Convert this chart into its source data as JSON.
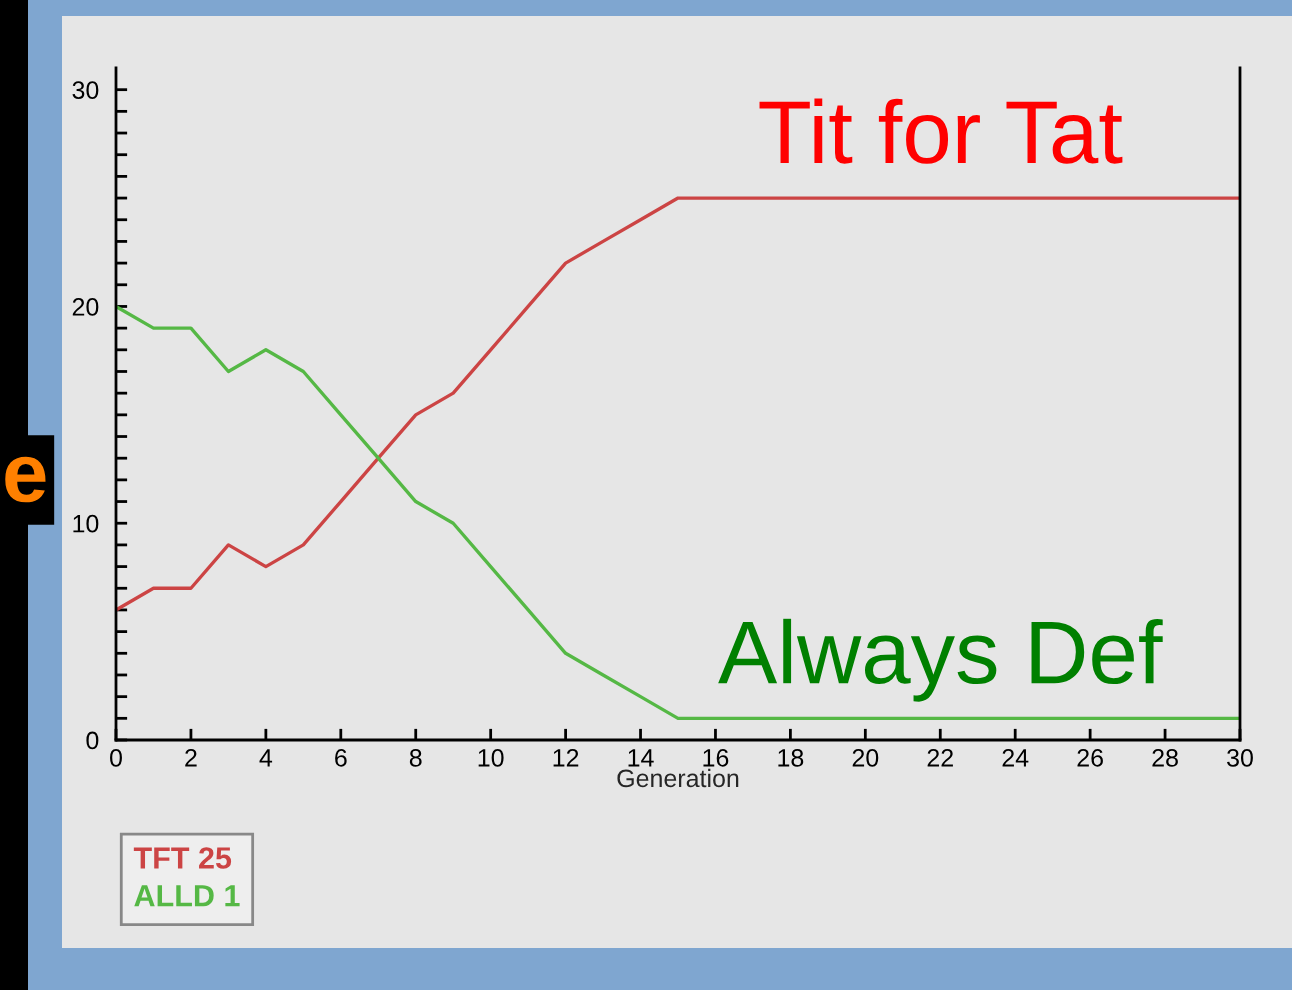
{
  "chart_data": {
    "type": "line",
    "x": [
      0,
      1,
      2,
      3,
      4,
      5,
      6,
      7,
      8,
      9,
      10,
      11,
      12,
      13,
      14,
      15,
      16,
      17,
      18,
      19,
      20,
      21,
      22,
      23,
      24,
      25,
      26,
      27,
      28,
      29,
      30
    ],
    "series": [
      {
        "name": "TFT 25",
        "color": "#cc4444",
        "values": [
          6,
          7,
          7,
          9,
          8,
          9,
          11,
          13,
          15,
          16,
          18,
          20,
          22,
          23,
          24,
          25,
          25,
          25,
          25,
          25,
          25,
          25,
          25,
          25,
          25,
          25,
          25,
          25,
          25,
          25,
          25
        ]
      },
      {
        "name": "ALLD 1",
        "color": "#55b845",
        "values": [
          20,
          19,
          19,
          17,
          18,
          17,
          15,
          13,
          11,
          10,
          8,
          6,
          4,
          3,
          2,
          1,
          1,
          1,
          1,
          1,
          1,
          1,
          1,
          1,
          1,
          1,
          1,
          1,
          1,
          1,
          1
        ]
      }
    ],
    "xlabel": "Generation",
    "annotations": [
      {
        "text": "Tit for Tat",
        "x": 22,
        "y": 25
      },
      {
        "text": "Always Def",
        "x": 22,
        "y": 1
      },
      "e"
    ],
    "xlim": [
      0,
      30
    ],
    "ylim": [
      0,
      31
    ],
    "xticks": [
      0,
      2,
      4,
      6,
      8,
      10,
      12,
      14,
      16,
      18,
      20,
      22,
      24,
      26,
      28,
      30
    ],
    "yticks": [
      0,
      {
        "value": 1,
        "label": null
      },
      {
        "value": 2,
        "label": null
      },
      {
        "value": 3,
        "label": null
      },
      {
        "value": 4,
        "label": null
      },
      {
        "value": 5,
        "label": null
      },
      {
        "value": 6,
        "label": null
      },
      {
        "value": 7,
        "label": null
      },
      {
        "value": 8,
        "label": null
      },
      {
        "value": 9,
        "label": null
      },
      10,
      {
        "value": 11,
        "label": null
      },
      {
        "value": 12,
        "label": null
      },
      {
        "value": 13,
        "label": null
      },
      {
        "value": 14,
        "label": null
      },
      {
        "value": 15,
        "label": null
      },
      {
        "value": 16,
        "label": null
      },
      {
        "value": 17,
        "label": null
      },
      {
        "value": 18,
        "label": null
      },
      {
        "value": 19,
        "label": null
      },
      20,
      {
        "value": 21,
        "label": null
      },
      {
        "value": 22,
        "label": null
      },
      {
        "value": 23,
        "label": null
      },
      {
        "value": 24,
        "label": null
      },
      {
        "value": 25,
        "label": null
      },
      {
        "value": 26,
        "label": null
      },
      {
        "value": 27,
        "label": null
      },
      {
        "value": 28,
        "label": null
      },
      {
        "value": 29,
        "label": null
      },
      30
    ],
    "grid": false,
    "legend": "bottom left",
    "marker": "none",
    "line_style": "solid"
  }
}
